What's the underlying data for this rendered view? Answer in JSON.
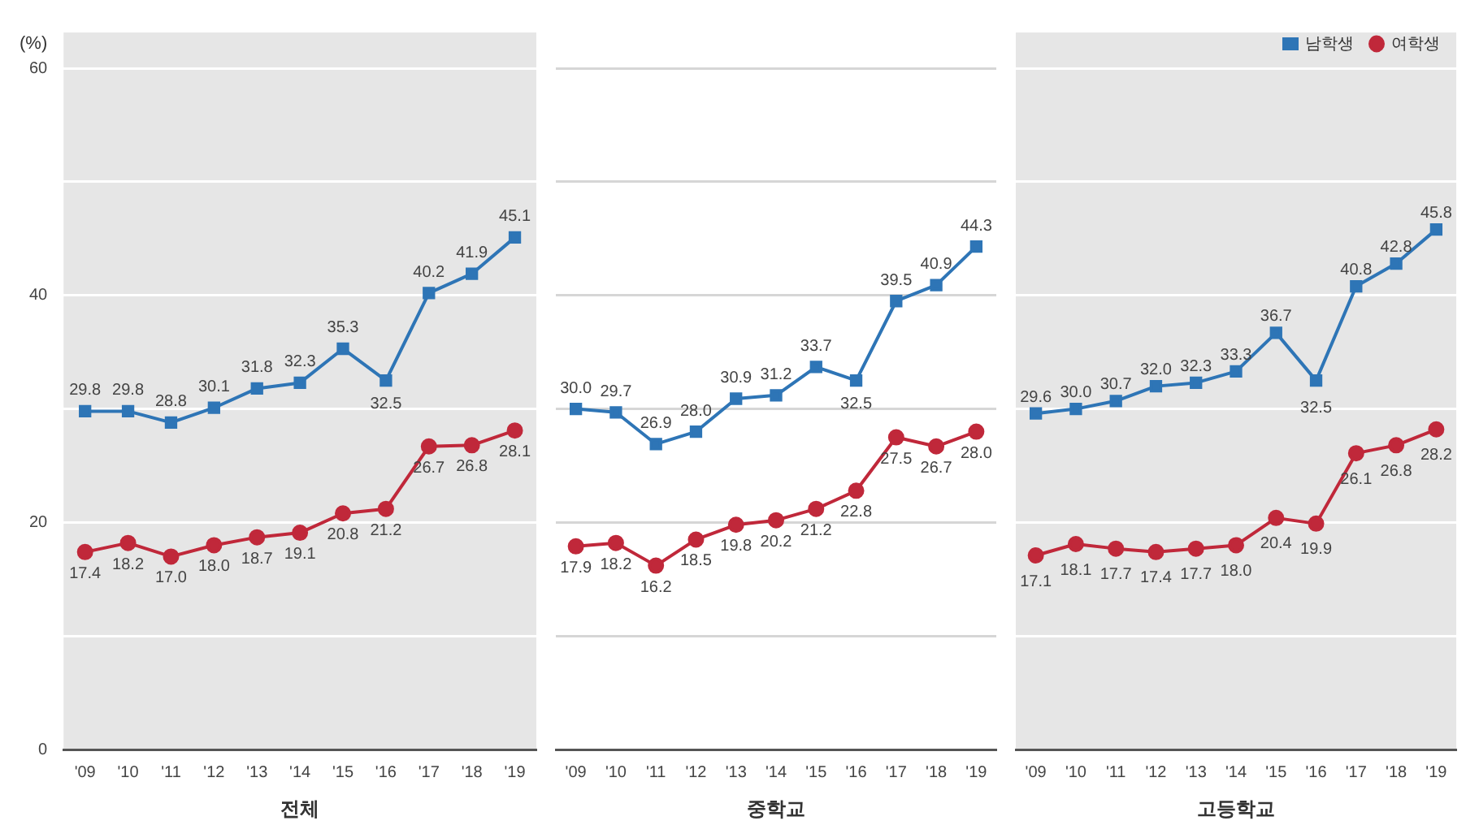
{
  "chart_data": [
    {
      "type": "line",
      "xlabel": "전체",
      "ylabel": "(%)",
      "categories": [
        "'09",
        "'10",
        "'11",
        "'12",
        "'13",
        "'14",
        "'15",
        "'16",
        "'17",
        "'18",
        "'19"
      ],
      "ylim": [
        0,
        60
      ],
      "yticks": [
        0,
        {
          "value": 10,
          "label": null
        },
        20,
        {
          "value": 30,
          "label": null
        },
        40,
        {
          "value": 50,
          "label": null
        },
        60
      ],
      "grid": "y",
      "series": [
        {
          "color": "#2e75b6",
          "marker": "square",
          "values": [
            29.8,
            29.8,
            28.8,
            30.1,
            31.8,
            32.3,
            35.3,
            32.5,
            40.2,
            41.9,
            45.1
          ],
          "value_labels": [
            "29.8",
            "29.8",
            "28.8",
            "30.1",
            "31.8",
            "32.3",
            "35.3",
            "32.5",
            "40.2",
            "41.9",
            "45.1"
          ]
        },
        {
          "color": "#c0283a",
          "marker": "circle",
          "values": [
            17.4,
            18.2,
            17.0,
            18.0,
            18.7,
            19.1,
            20.8,
            21.2,
            26.7,
            26.8,
            28.1
          ],
          "value_labels": [
            "17.4",
            "18.2",
            "17.0",
            "18.0",
            "18.7",
            "19.1",
            "20.8",
            "21.2",
            "26.7",
            "26.8",
            "28.1"
          ]
        }
      ]
    },
    {
      "type": "line",
      "xlabel": "중학교",
      "categories": [
        "'09",
        "'10",
        "'11",
        "'12",
        "'13",
        "'14",
        "'15",
        "'16",
        "'17",
        "'18",
        "'19"
      ],
      "ylim": [
        0,
        60
      ],
      "yticks": [
        0,
        {
          "value": 10,
          "label": null
        },
        20,
        {
          "value": 30,
          "label": null
        },
        40,
        {
          "value": 50,
          "label": null
        },
        60
      ],
      "tick_labels": "x",
      "grid": "y",
      "series": [
        {
          "color": "#2e75b6",
          "marker": "square",
          "values": [
            30.0,
            29.7,
            26.9,
            28.0,
            30.9,
            31.2,
            33.7,
            32.5,
            39.5,
            40.9,
            44.3
          ],
          "value_labels": [
            "30.0",
            "29.7",
            "26.9",
            "28.0",
            "30.9",
            "31.2",
            "33.7",
            "32.5",
            "39.5",
            "40.9",
            "44.3"
          ]
        },
        {
          "color": "#c0283a",
          "marker": "circle",
          "values": [
            17.9,
            18.2,
            16.2,
            18.5,
            19.8,
            20.2,
            21.2,
            22.8,
            27.5,
            26.7,
            28.0
          ],
          "value_labels": [
            "17.9",
            "18.2",
            "16.2",
            "18.5",
            "19.8",
            "20.2",
            "21.2",
            "22.8",
            "27.5",
            "26.7",
            "28.0"
          ]
        }
      ]
    },
    {
      "type": "line",
      "xlabel": "고등학교",
      "categories": [
        "'09",
        "'10",
        "'11",
        "'12",
        "'13",
        "'14",
        "'15",
        "'16",
        "'17",
        "'18",
        "'19"
      ],
      "ylim": [
        0,
        60
      ],
      "yticks": [
        0,
        {
          "value": 10,
          "label": null
        },
        20,
        {
          "value": 30,
          "label": null
        },
        40,
        {
          "value": 50,
          "label": null
        },
        60
      ],
      "tick_labels": "x",
      "grid": "y",
      "legend": "top right",
      "series": [
        {
          "name": "남학생",
          "color": "#2e75b6",
          "marker": "square",
          "values": [
            29.6,
            30.0,
            30.7,
            32.0,
            32.3,
            33.3,
            36.7,
            32.5,
            40.8,
            42.8,
            45.8
          ],
          "value_labels": [
            "29.6",
            "30.0",
            "30.7",
            "32.0",
            "32.3",
            "33.3",
            "36.7",
            "32.5",
            "40.8",
            "42.8",
            "45.8"
          ]
        },
        {
          "name": "여학생",
          "color": "#c0283a",
          "marker": "circle",
          "values": [
            17.1,
            18.1,
            17.7,
            17.4,
            17.7,
            18.0,
            20.4,
            19.9,
            26.1,
            26.8,
            28.2
          ],
          "value_labels": [
            "17.1",
            "18.1",
            "17.7",
            "17.4",
            "17.7",
            "18.0",
            "20.4",
            "19.9",
            "26.1",
            "26.8",
            "28.2"
          ]
        }
      ]
    }
  ]
}
